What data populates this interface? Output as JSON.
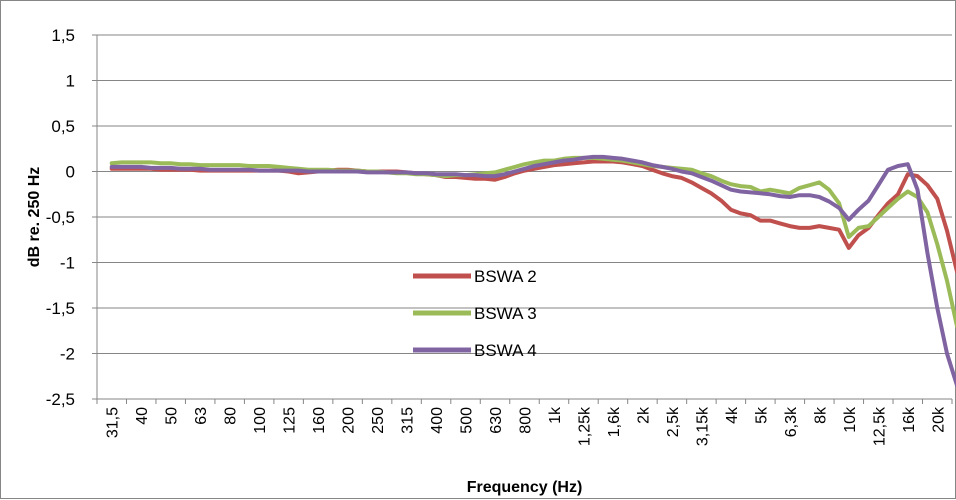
{
  "chart_data": {
    "type": "line",
    "title": "",
    "xlabel": "Frequency (Hz)",
    "ylabel": "dB re. 250 Hz",
    "ylim": [
      -2.5,
      1.5
    ],
    "yticks": [
      "1,5",
      "1",
      "0,5",
      "0",
      "-0,5",
      "-1",
      "-1,5",
      "-2",
      "-2,5"
    ],
    "ytick_values": [
      1.5,
      1,
      0.5,
      0,
      -0.5,
      -1,
      -1.5,
      -2,
      -2.5
    ],
    "grid": "horizontal",
    "legend": "center",
    "categories": [
      "31,5",
      "40",
      "50",
      "63",
      "80",
      "100",
      "125",
      "160",
      "200",
      "250",
      "315",
      "400",
      "500",
      "630",
      "800",
      "1k",
      "1,25k",
      "1,6k",
      "2k",
      "2,5k",
      "3,15k",
      "4k",
      "5k",
      "6,3k",
      "8k",
      "10k",
      "12,5k",
      "16k",
      "20k"
    ],
    "series": [
      {
        "name": "BSWA 2",
        "color": "#c0504d",
        "values": [
          [
            0,
            0.03
          ],
          [
            0.33,
            0.03
          ],
          [
            0.67,
            0.03
          ],
          [
            1,
            0.03
          ],
          [
            1.33,
            0.03
          ],
          [
            1.67,
            0.02
          ],
          [
            2,
            0.02
          ],
          [
            2.33,
            0.02
          ],
          [
            2.67,
            0.02
          ],
          [
            3,
            0.01
          ],
          [
            3.33,
            0.01
          ],
          [
            3.67,
            0.01
          ],
          [
            4,
            0.01
          ],
          [
            4.33,
            0.01
          ],
          [
            4.67,
            0.01
          ],
          [
            5,
            0.01
          ],
          [
            5.33,
            0.01
          ],
          [
            5.67,
            0.01
          ],
          [
            6,
            0.0
          ],
          [
            6.33,
            -0.02
          ],
          [
            6.67,
            -0.01
          ],
          [
            7,
            0.0
          ],
          [
            7.33,
            0.01
          ],
          [
            7.67,
            0.02
          ],
          [
            8,
            0.02
          ],
          [
            8.33,
            0.01
          ],
          [
            8.67,
            0.0
          ],
          [
            9,
            0.0
          ],
          [
            9.33,
            0.0
          ],
          [
            9.67,
            0.0
          ],
          [
            10,
            -0.01
          ],
          [
            10.33,
            -0.02
          ],
          [
            10.67,
            -0.03
          ],
          [
            11,
            -0.04
          ],
          [
            11.33,
            -0.06
          ],
          [
            11.67,
            -0.06
          ],
          [
            12,
            -0.07
          ],
          [
            12.33,
            -0.08
          ],
          [
            12.67,
            -0.08
          ],
          [
            13,
            -0.09
          ],
          [
            13.33,
            -0.06
          ],
          [
            13.67,
            -0.02
          ],
          [
            14,
            0.01
          ],
          [
            14.33,
            0.03
          ],
          [
            14.67,
            0.05
          ],
          [
            15,
            0.07
          ],
          [
            15.33,
            0.08
          ],
          [
            15.67,
            0.09
          ],
          [
            16,
            0.1
          ],
          [
            16.33,
            0.11
          ],
          [
            16.67,
            0.11
          ],
          [
            17,
            0.11
          ],
          [
            17.33,
            0.1
          ],
          [
            17.67,
            0.08
          ],
          [
            18,
            0.06
          ],
          [
            18.33,
            0.02
          ],
          [
            18.67,
            -0.02
          ],
          [
            19,
            -0.05
          ],
          [
            19.33,
            -0.07
          ],
          [
            19.67,
            -0.12
          ],
          [
            20,
            -0.18
          ],
          [
            20.33,
            -0.24
          ],
          [
            20.67,
            -0.32
          ],
          [
            21,
            -0.42
          ],
          [
            21.33,
            -0.46
          ],
          [
            21.67,
            -0.48
          ],
          [
            22,
            -0.54
          ],
          [
            22.33,
            -0.54
          ],
          [
            22.67,
            -0.57
          ],
          [
            23,
            -0.6
          ],
          [
            23.33,
            -0.62
          ],
          [
            23.67,
            -0.62
          ],
          [
            24,
            -0.6
          ],
          [
            24.33,
            -0.62
          ],
          [
            24.67,
            -0.64
          ],
          [
            25,
            -0.84
          ],
          [
            25.33,
            -0.7
          ],
          [
            25.67,
            -0.62
          ],
          [
            26,
            -0.48
          ],
          [
            26.33,
            -0.35
          ],
          [
            26.67,
            -0.25
          ],
          [
            27,
            -0.03
          ],
          [
            27.33,
            -0.05
          ],
          [
            27.67,
            -0.15
          ],
          [
            28,
            -0.3
          ],
          [
            28.33,
            -0.65
          ],
          [
            28.67,
            -1.1
          ]
        ]
      },
      {
        "name": "BSWA 3",
        "color": "#9bbb59",
        "values": [
          [
            0,
            0.09
          ],
          [
            0.33,
            0.1
          ],
          [
            0.67,
            0.1
          ],
          [
            1,
            0.1
          ],
          [
            1.33,
            0.1
          ],
          [
            1.67,
            0.09
          ],
          [
            2,
            0.09
          ],
          [
            2.33,
            0.08
          ],
          [
            2.67,
            0.08
          ],
          [
            3,
            0.07
          ],
          [
            3.33,
            0.07
          ],
          [
            3.67,
            0.07
          ],
          [
            4,
            0.07
          ],
          [
            4.33,
            0.07
          ],
          [
            4.67,
            0.06
          ],
          [
            5,
            0.06
          ],
          [
            5.33,
            0.06
          ],
          [
            5.67,
            0.05
          ],
          [
            6,
            0.04
          ],
          [
            6.33,
            0.03
          ],
          [
            6.67,
            0.02
          ],
          [
            7,
            0.02
          ],
          [
            7.33,
            0.02
          ],
          [
            7.67,
            0.01
          ],
          [
            8,
            0.01
          ],
          [
            8.33,
            0.01
          ],
          [
            8.67,
            0.0
          ],
          [
            9,
            0.0
          ],
          [
            9.33,
            -0.01
          ],
          [
            9.67,
            -0.02
          ],
          [
            10,
            -0.02
          ],
          [
            10.33,
            -0.03
          ],
          [
            10.67,
            -0.03
          ],
          [
            11,
            -0.04
          ],
          [
            11.33,
            -0.05
          ],
          [
            11.67,
            -0.04
          ],
          [
            12,
            -0.04
          ],
          [
            12.33,
            -0.03
          ],
          [
            12.67,
            -0.02
          ],
          [
            13,
            -0.01
          ],
          [
            13.33,
            0.02
          ],
          [
            13.67,
            0.05
          ],
          [
            14,
            0.08
          ],
          [
            14.33,
            0.1
          ],
          [
            14.67,
            0.12
          ],
          [
            15,
            0.12
          ],
          [
            15.33,
            0.14
          ],
          [
            15.67,
            0.15
          ],
          [
            16,
            0.15
          ],
          [
            16.33,
            0.15
          ],
          [
            16.67,
            0.14
          ],
          [
            17,
            0.13
          ],
          [
            17.33,
            0.12
          ],
          [
            17.67,
            0.1
          ],
          [
            18,
            0.08
          ],
          [
            18.33,
            0.06
          ],
          [
            18.67,
            0.05
          ],
          [
            19,
            0.04
          ],
          [
            19.33,
            0.03
          ],
          [
            19.67,
            0.02
          ],
          [
            20,
            -0.02
          ],
          [
            20.33,
            -0.05
          ],
          [
            20.67,
            -0.1
          ],
          [
            21,
            -0.14
          ],
          [
            21.33,
            -0.16
          ],
          [
            21.67,
            -0.17
          ],
          [
            22,
            -0.22
          ],
          [
            22.33,
            -0.2
          ],
          [
            22.67,
            -0.22
          ],
          [
            23,
            -0.24
          ],
          [
            23.33,
            -0.18
          ],
          [
            23.67,
            -0.15
          ],
          [
            24,
            -0.12
          ],
          [
            24.33,
            -0.2
          ],
          [
            24.67,
            -0.35
          ],
          [
            25,
            -0.72
          ],
          [
            25.33,
            -0.62
          ],
          [
            25.67,
            -0.6
          ],
          [
            26,
            -0.5
          ],
          [
            26.33,
            -0.4
          ],
          [
            26.67,
            -0.3
          ],
          [
            27,
            -0.22
          ],
          [
            27.33,
            -0.28
          ],
          [
            27.67,
            -0.45
          ],
          [
            28,
            -0.8
          ],
          [
            28.33,
            -1.2
          ],
          [
            28.67,
            -1.7
          ]
        ]
      },
      {
        "name": "BSWA 4",
        "color": "#8064a2",
        "values": [
          [
            0,
            0.05
          ],
          [
            0.33,
            0.05
          ],
          [
            0.67,
            0.05
          ],
          [
            1,
            0.05
          ],
          [
            1.33,
            0.04
          ],
          [
            1.67,
            0.04
          ],
          [
            2,
            0.04
          ],
          [
            2.33,
            0.03
          ],
          [
            2.67,
            0.03
          ],
          [
            3,
            0.03
          ],
          [
            3.33,
            0.02
          ],
          [
            3.67,
            0.02
          ],
          [
            4,
            0.02
          ],
          [
            4.33,
            0.02
          ],
          [
            4.67,
            0.02
          ],
          [
            5,
            0.01
          ],
          [
            5.33,
            0.01
          ],
          [
            5.67,
            0.01
          ],
          [
            6,
            0.01
          ],
          [
            6.33,
            0.01
          ],
          [
            6.67,
            0.0
          ],
          [
            7,
            0.0
          ],
          [
            7.33,
            0.0
          ],
          [
            7.67,
            0.0
          ],
          [
            8,
            0.0
          ],
          [
            8.33,
            0.0
          ],
          [
            8.67,
            -0.01
          ],
          [
            9,
            -0.01
          ],
          [
            9.33,
            -0.01
          ],
          [
            9.67,
            -0.01
          ],
          [
            10,
            -0.01
          ],
          [
            10.33,
            -0.02
          ],
          [
            10.67,
            -0.02
          ],
          [
            11,
            -0.03
          ],
          [
            11.33,
            -0.03
          ],
          [
            11.67,
            -0.03
          ],
          [
            12,
            -0.04
          ],
          [
            12.33,
            -0.04
          ],
          [
            12.67,
            -0.05
          ],
          [
            13,
            -0.05
          ],
          [
            13.33,
            -0.03
          ],
          [
            13.67,
            0.0
          ],
          [
            14,
            0.03
          ],
          [
            14.33,
            0.06
          ],
          [
            14.67,
            0.08
          ],
          [
            15,
            0.1
          ],
          [
            15.33,
            0.12
          ],
          [
            15.67,
            0.13
          ],
          [
            16,
            0.15
          ],
          [
            16.33,
            0.16
          ],
          [
            16.67,
            0.16
          ],
          [
            17,
            0.15
          ],
          [
            17.33,
            0.14
          ],
          [
            17.67,
            0.12
          ],
          [
            18,
            0.1
          ],
          [
            18.33,
            0.07
          ],
          [
            18.67,
            0.05
          ],
          [
            19,
            0.03
          ],
          [
            19.33,
            0.0
          ],
          [
            19.67,
            -0.02
          ],
          [
            20,
            -0.06
          ],
          [
            20.33,
            -0.1
          ],
          [
            20.67,
            -0.15
          ],
          [
            21,
            -0.2
          ],
          [
            21.33,
            -0.22
          ],
          [
            21.67,
            -0.23
          ],
          [
            22,
            -0.24
          ],
          [
            22.33,
            -0.25
          ],
          [
            22.67,
            -0.27
          ],
          [
            23,
            -0.28
          ],
          [
            23.33,
            -0.26
          ],
          [
            23.67,
            -0.26
          ],
          [
            24,
            -0.28
          ],
          [
            24.33,
            -0.33
          ],
          [
            24.67,
            -0.4
          ],
          [
            25,
            -0.53
          ],
          [
            25.33,
            -0.42
          ],
          [
            25.67,
            -0.32
          ],
          [
            26,
            -0.15
          ],
          [
            26.33,
            0.02
          ],
          [
            26.67,
            0.06
          ],
          [
            27,
            0.08
          ],
          [
            27.33,
            -0.2
          ],
          [
            27.67,
            -0.9
          ],
          [
            28,
            -1.5
          ],
          [
            28.33,
            -2.0
          ],
          [
            28.67,
            -2.35
          ]
        ]
      }
    ]
  }
}
